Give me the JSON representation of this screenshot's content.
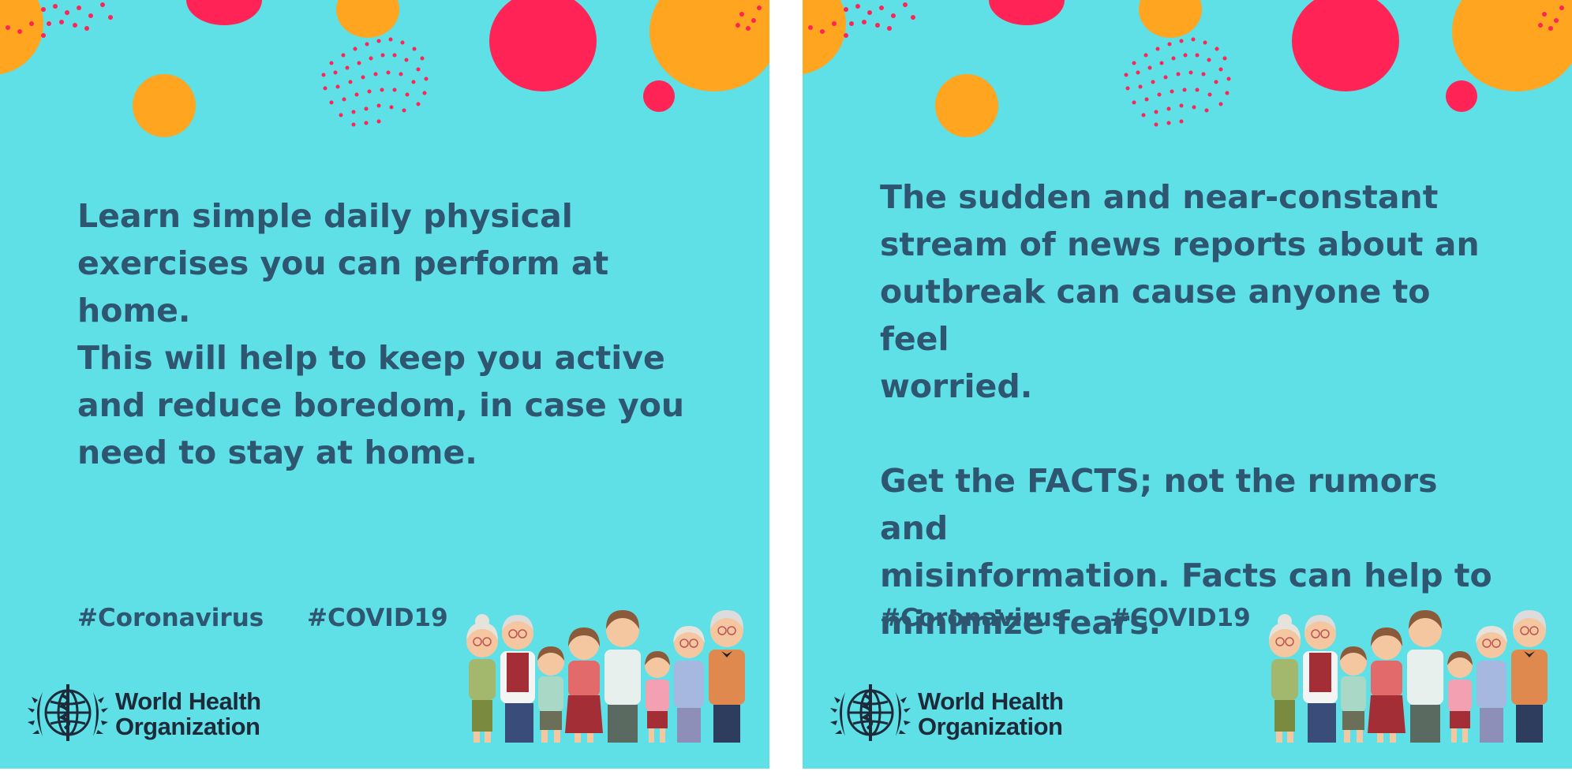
{
  "cards": [
    {
      "message_lines": [
        "Learn simple daily physical",
        "exercises you can perform at",
        "home.",
        "This will help to keep you active",
        "and reduce boredom, in case you",
        "need to stay at home."
      ],
      "hashtags": [
        "#Coronavirus",
        "#COVID19"
      ],
      "logo": {
        "line1": "World Health",
        "line2": "Organization"
      }
    },
    {
      "message_lines": [
        "The sudden and near-constant",
        "stream of news reports about an",
        "outbreak can cause anyone to feel",
        "worried."
      ],
      "message_lines_2": [
        "Get the FACTS; not the rumors and",
        "misinformation. Facts can help to",
        "minimize fears."
      ],
      "hashtags": [
        "#Coronavirus",
        "#COVID19"
      ],
      "logo": {
        "line1": "World Health",
        "line2": "Organization"
      }
    }
  ],
  "colors": {
    "background": "#5fdfe6",
    "text": "#2f5671",
    "accent_red": "#ff2356",
    "accent_orange": "#ffa51f"
  },
  "icons": [
    "who-emblem-icon",
    "family-illustration"
  ]
}
